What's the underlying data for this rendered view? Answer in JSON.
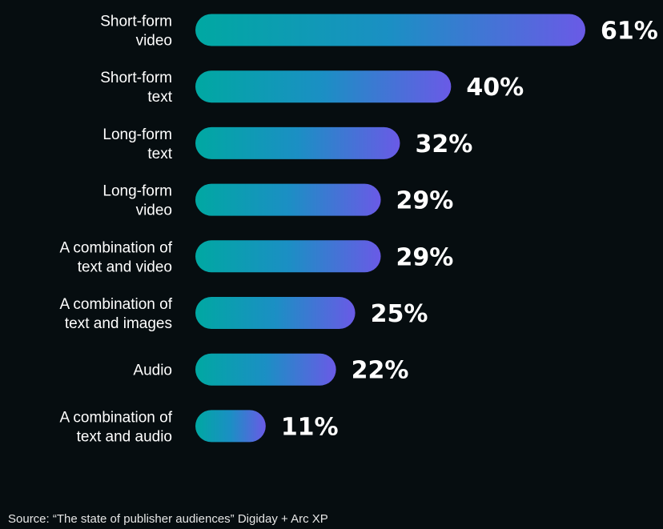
{
  "chart_data": {
    "type": "bar",
    "orientation": "horizontal",
    "title": "",
    "xlabel": "",
    "ylabel": "",
    "grid": false,
    "xlim": [
      0,
      61
    ],
    "categories": [
      [
        "Short-form",
        "video"
      ],
      [
        "Short-form",
        "text"
      ],
      [
        "Long-form",
        "text"
      ],
      [
        "Long-form",
        "video"
      ],
      [
        "A combination of",
        "text and video"
      ],
      [
        "A combination of",
        "text and images"
      ],
      [
        "Audio"
      ],
      [
        "A combination of",
        "text and audio"
      ]
    ],
    "values": [
      61,
      40,
      32,
      29,
      29,
      25,
      22,
      11
    ],
    "value_labels": [
      "61%",
      "40%",
      "32%",
      "29%",
      "29%",
      "25%",
      "22%",
      "11%"
    ],
    "colors": {
      "background": "#060d10",
      "bar_gradient_start": "#00a8a2",
      "bar_gradient_mid": "#1b8fc4",
      "bar_gradient_end": "#6a5ae6",
      "text": "#ffffff"
    }
  },
  "source": "Source: “The state of publisher audiences” Digiday + Arc XP"
}
